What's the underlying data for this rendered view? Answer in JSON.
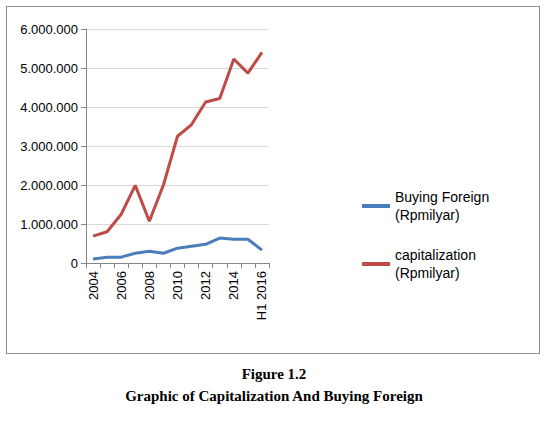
{
  "chart_data": {
    "type": "line",
    "title": "Figure 1.2",
    "subtitle": "Graphic of Capitalization And Buying Foreign",
    "categories": [
      "2004",
      null,
      "2006",
      null,
      "2008",
      null,
      "2010",
      null,
      "2012",
      null,
      "2014",
      null,
      "H1 2016"
    ],
    "series": [
      {
        "name": "Buying Foreign (Rpmilyar)",
        "color": "#4a7ebb",
        "values": [
          100000,
          150000,
          150000,
          250000,
          300000,
          250000,
          380000,
          430000,
          480000,
          640000,
          610000,
          610000,
          330000
        ]
      },
      {
        "name": "capitalization (Rpmilyar)",
        "color": "#be4b48",
        "values": [
          690000,
          800000,
          1250000,
          1990000,
          1070000,
          2000000,
          3250000,
          3550000,
          4130000,
          4220000,
          5230000,
          4870000,
          5400000
        ]
      }
    ],
    "ylim": [
      0,
      6000000
    ],
    "yticks": [
      0,
      {
        "value": 1000000,
        "label": "1.000.000"
      },
      {
        "value": 2000000,
        "label": "2.000.000"
      },
      {
        "value": 3000000,
        "label": "3.000.000"
      },
      {
        "value": 4000000,
        "label": "4.000.000"
      },
      {
        "value": 5000000,
        "label": "5.000.000"
      },
      {
        "value": 6000000,
        "label": "6.000.000"
      }
    ],
    "grid": true,
    "legend": "right"
  }
}
